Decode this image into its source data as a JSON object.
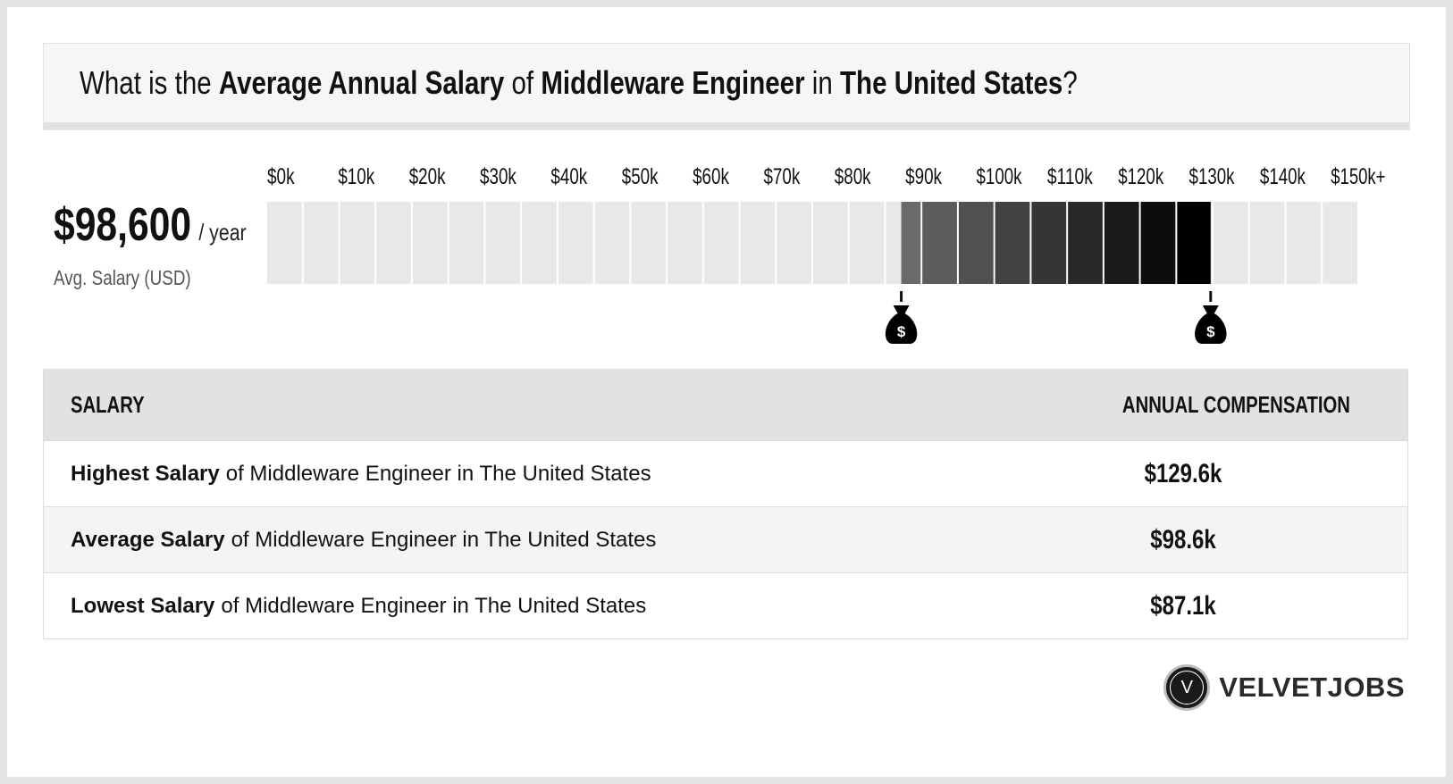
{
  "question": {
    "prefix": "What is the",
    "metric": "Average Annual Salary",
    "of": "of",
    "job": "Middleware Engineer",
    "in": "in",
    "location": "The United States",
    "suffix": "?"
  },
  "summary": {
    "amount": "$98,600",
    "unit": "/ year",
    "label": "Avg. Salary (USD)"
  },
  "chart_data": {
    "type": "range",
    "tick_labels": [
      "$0k",
      "$10k",
      "$20k",
      "$30k",
      "$40k",
      "$50k",
      "$60k",
      "$70k",
      "$80k",
      "$90k",
      "$100k",
      "$110k",
      "$120k",
      "$130k",
      "$140k",
      "$150k+"
    ],
    "x_range": [
      0,
      150
    ],
    "x_unit": "thousand USD",
    "low": 87.1,
    "average": 98.6,
    "high": 129.6,
    "marker_icon": "money-bag-icon",
    "marker_symbol": "$",
    "colors": {
      "empty": "#e8e8e8",
      "range_start": "#6a6a6a",
      "range_end": "#000000"
    }
  },
  "table": {
    "headers": [
      "SALARY",
      "ANNUAL COMPENSATION"
    ],
    "rows": [
      {
        "bold": "Highest Salary",
        "rest": "of Middleware Engineer in The United States",
        "value": "$129.6k"
      },
      {
        "bold": "Average Salary",
        "rest": "of Middleware Engineer in The United States",
        "value": "$98.6k"
      },
      {
        "bold": "Lowest Salary",
        "rest": "of Middleware Engineer in The United States",
        "value": "$87.1k"
      }
    ]
  },
  "brand": {
    "badge_letter": "V",
    "name": "VELVETJOBS"
  }
}
